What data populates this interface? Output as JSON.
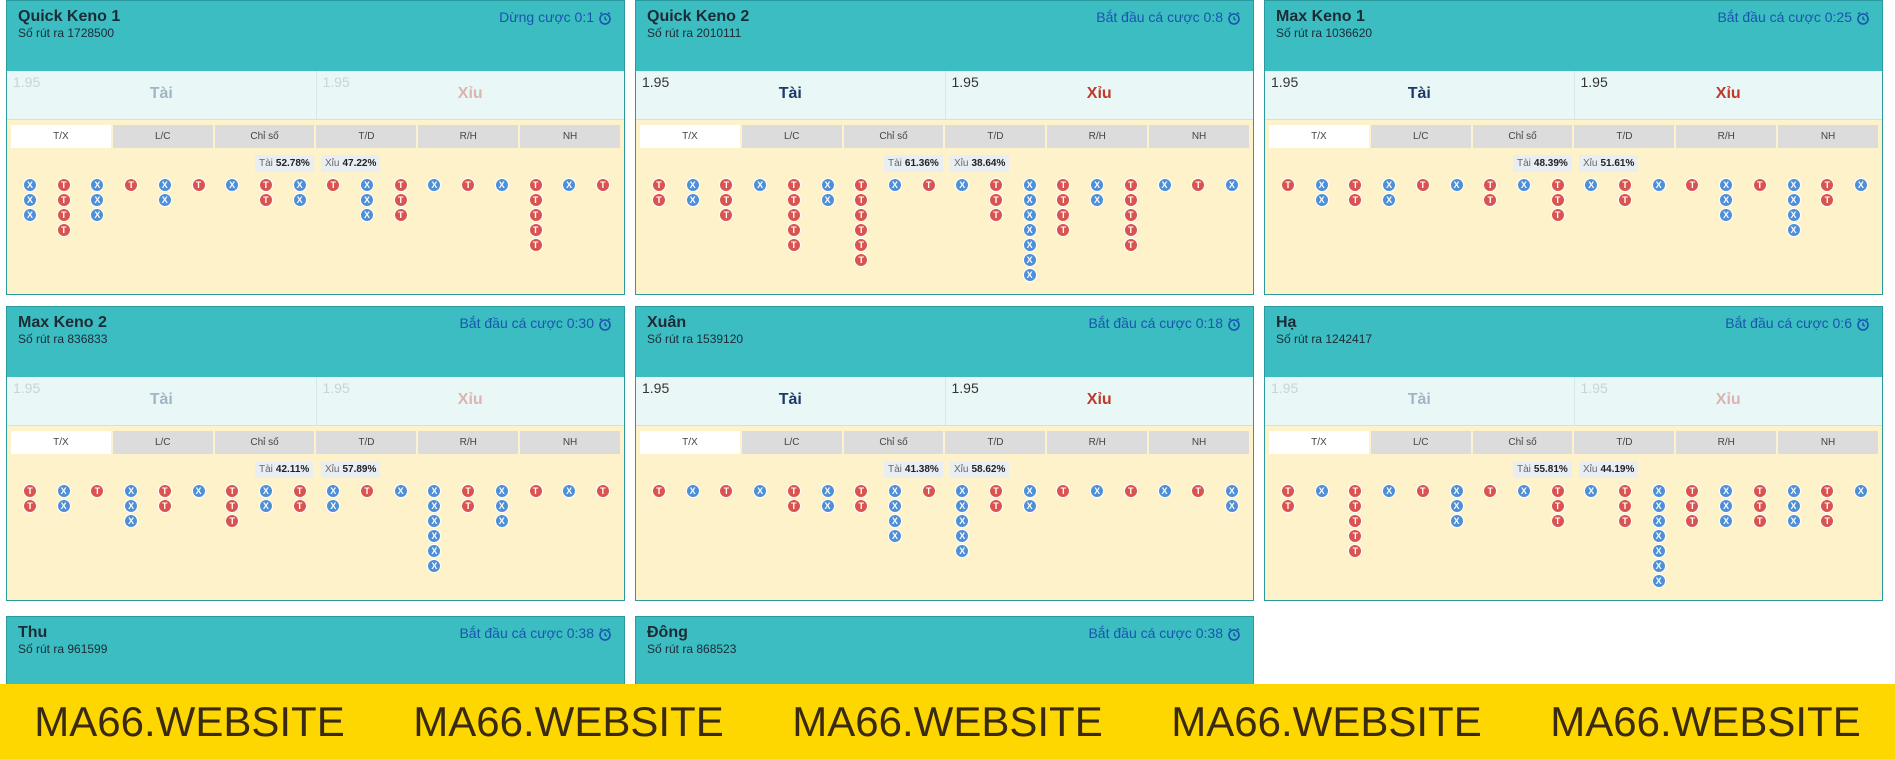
{
  "tabs": [
    "T/X",
    "L/C",
    "Chỉ số",
    "T/D",
    "R/H",
    "NH"
  ],
  "panels": [
    {
      "title": "Quick Keno 1",
      "draw": "Số rút ra 1728500",
      "status": "Dừng cược 0:1",
      "disabled": true,
      "odds_tai": 1.95,
      "odds_xiu": 1.95,
      "tai": "Tài",
      "xiu": "Xỉu",
      "stat_tai": "Tài",
      "stat_tai_pct": "52.78%",
      "stat_xiu": "Xỉu",
      "stat_xiu_pct": "47.22%",
      "road": [
        "XXX",
        "TTTT",
        "XXX",
        "T",
        "XX",
        "T",
        "X",
        "TT",
        "XX",
        "T",
        "XXX",
        "TTT",
        "X",
        "T",
        "X",
        "TTTTT",
        "X",
        "T"
      ]
    },
    {
      "title": "Quick Keno 2",
      "draw": "Số rút ra 2010111",
      "status": "Bắt đầu cá cược 0:8",
      "disabled": false,
      "odds_tai": 1.95,
      "odds_xiu": 1.95,
      "tai": "Tài",
      "xiu": "Xỉu",
      "stat_tai": "Tài",
      "stat_tai_pct": "61.36%",
      "stat_xiu": "Xỉu",
      "stat_xiu_pct": "38.64%",
      "road": [
        "TT",
        "XX",
        "TTT",
        "X",
        "TTTTT",
        "XX",
        "TTTTTT",
        "X",
        "T",
        "X",
        "TTT",
        "XXXXXXX",
        "TTTT",
        "XX",
        "TTTTT",
        "X",
        "T",
        "X"
      ]
    },
    {
      "title": "Max Keno 1",
      "draw": "Số rút ra 1036620",
      "status": "Bắt đầu cá cược 0:25",
      "disabled": false,
      "odds_tai": 1.95,
      "odds_xiu": 1.95,
      "tai": "Tài",
      "xiu": "Xỉu",
      "stat_tai": "Tài",
      "stat_tai_pct": "48.39%",
      "stat_xiu": "Xỉu",
      "stat_xiu_pct": "51.61%",
      "road": [
        "T",
        "XX",
        "TT",
        "XX",
        "T",
        "X",
        "TT",
        "X",
        "TTT",
        "X",
        "TT",
        "X",
        "T",
        "XXX",
        "T",
        "XXXX",
        "TT",
        "X"
      ]
    },
    {
      "title": "Max Keno 2",
      "draw": "Số rút ra 836833",
      "status": "Bắt đầu cá cược 0:30",
      "disabled": true,
      "odds_tai": 1.95,
      "odds_xiu": 1.95,
      "tai": "Tài",
      "xiu": "Xỉu",
      "stat_tai": "Tài",
      "stat_tai_pct": "42.11%",
      "stat_xiu": "Xỉu",
      "stat_xiu_pct": "57.89%",
      "road": [
        "TT",
        "XX",
        "T",
        "XXX",
        "TT",
        "X",
        "TTT",
        "XX",
        "TT",
        "XX",
        "T",
        "X",
        "XXXXXX",
        "TT",
        "XXX",
        "T",
        "X",
        "T"
      ]
    },
    {
      "title": "Xuân",
      "draw": "Số rút ra 1539120",
      "status": "Bắt đầu cá cược 0:18",
      "disabled": false,
      "odds_tai": 1.95,
      "odds_xiu": 1.95,
      "tai": "Tài",
      "xiu": "Xỉu",
      "stat_tai": "Tài",
      "stat_tai_pct": "41.38%",
      "stat_xiu": "Xỉu",
      "stat_xiu_pct": "58.62%",
      "road": [
        "T",
        "X",
        "T",
        "X",
        "TT",
        "XX",
        "TT",
        "XXXX",
        "T",
        "XXXXX",
        "TT",
        "XX",
        "T",
        "X",
        "T",
        "X",
        "T",
        "XX"
      ]
    },
    {
      "title": "Hạ",
      "draw": "Số rút ra 1242417",
      "status": "Bắt đầu cá cược 0:6",
      "disabled": true,
      "odds_tai": 1.95,
      "odds_xiu": 1.95,
      "tai": "Tài",
      "xiu": "Xỉu",
      "stat_tai": "Tài",
      "stat_tai_pct": "55.81%",
      "stat_xiu": "Xỉu",
      "stat_xiu_pct": "44.19%",
      "road": [
        "TT",
        "X",
        "TTTTT",
        "X",
        "T",
        "XXX",
        "T",
        "X",
        "TTT",
        "X",
        "TTT",
        "XXXXXXX",
        "TTT",
        "XXX",
        "TTT",
        "XXX",
        "TTT",
        "X"
      ]
    },
    {
      "title": "Thu",
      "draw": "Số rút ra 961599",
      "status": "Bắt đầu cá cược 0:38"
    },
    {
      "title": "Đông",
      "draw": "Số rút ra 868523",
      "status": "Bắt đầu cá cược 0:38"
    }
  ],
  "banner": [
    "MA66.WEBSITE",
    "MA66.WEBSITE",
    "MA66.WEBSITE",
    "MA66.WEBSITE",
    "MA66.WEBSITE"
  ]
}
